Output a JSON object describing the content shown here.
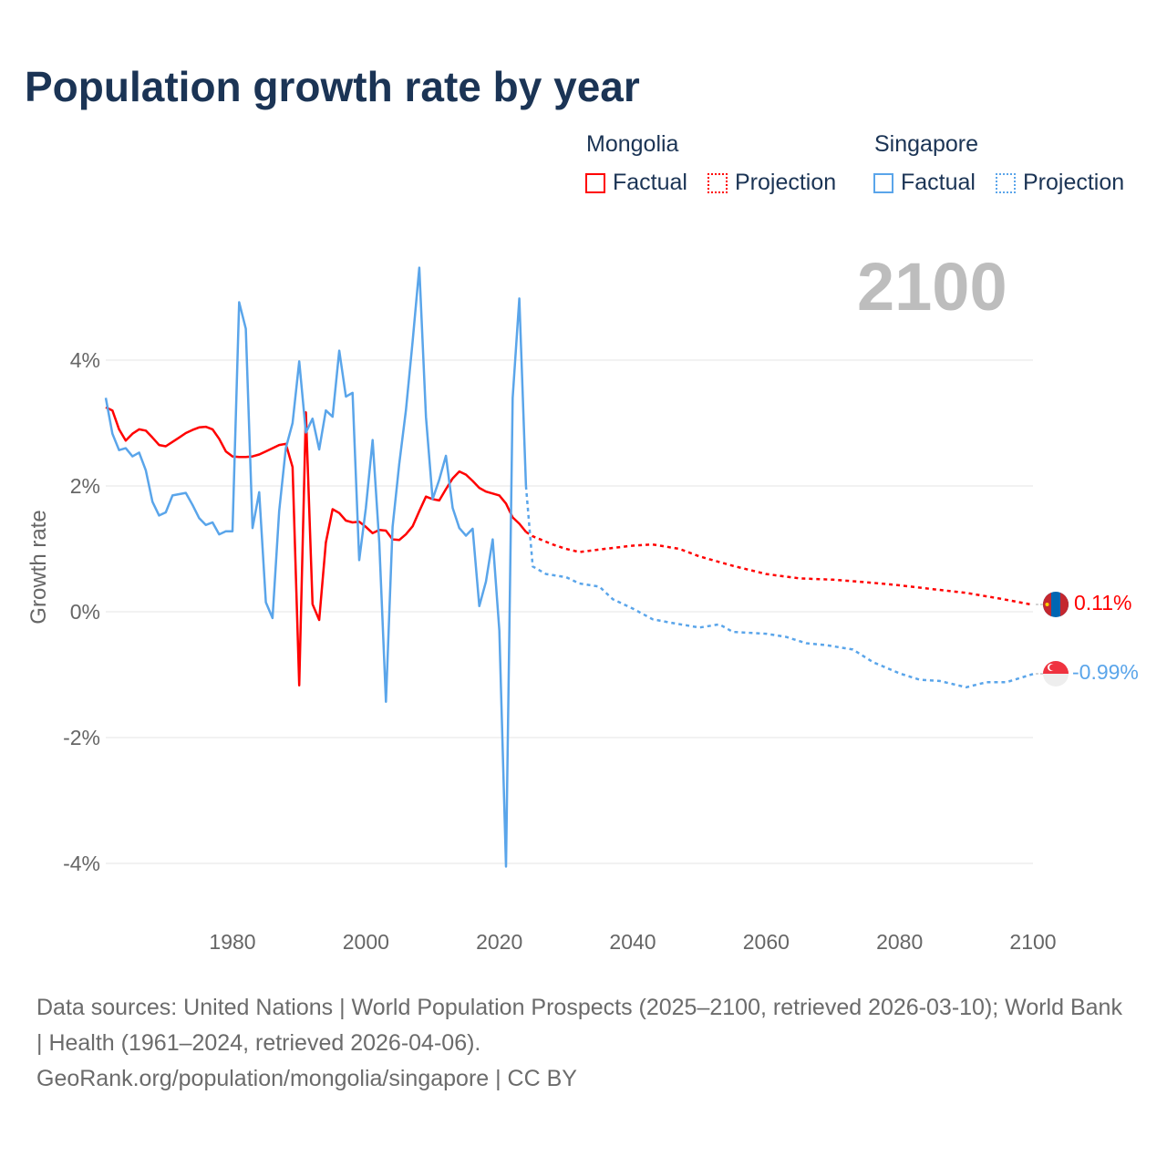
{
  "title": "Population growth rate by year",
  "legend": {
    "groups": [
      {
        "name": "Mongolia",
        "factual": "Factual",
        "projection": "Projection",
        "color": "#ff0000"
      },
      {
        "name": "Singapore",
        "factual": "Factual",
        "projection": "Projection",
        "color": "#5aa5ea"
      }
    ]
  },
  "current_year": "2100",
  "end_labels": {
    "mongolia": "0.11%",
    "singapore": "-0.99%"
  },
  "footer": {
    "sources": "Data sources: United Nations | World Population Prospects (2025–2100, retrieved 2026-03-10); World Bank | Health (1961–2024, retrieved 2026-04-06).",
    "credit": "GeoRank.org/population/mongolia/singapore | CC BY"
  },
  "chart_data": {
    "type": "line",
    "title": "Population growth rate by year",
    "xlabel": "",
    "ylabel": "Growth rate",
    "xlim": [
      1961,
      2100
    ],
    "ylim": [
      -4.5,
      5.5
    ],
    "xticks": [
      1980,
      2000,
      2020,
      2040,
      2060,
      2080,
      2100
    ],
    "yticks": [
      {
        "v": 4,
        "label": "4%"
      },
      {
        "v": 2,
        "label": "2%"
      },
      {
        "v": 0,
        "label": "0%"
      },
      {
        "v": -2,
        "label": "-2%"
      },
      {
        "v": -4,
        "label": "-4%"
      }
    ],
    "grid": true,
    "series": [
      {
        "name": "Mongolia Factual",
        "color": "#ff0000",
        "dashed": false,
        "start": 1961,
        "values": [
          3.25,
          3.2,
          2.9,
          2.72,
          2.83,
          2.9,
          2.88,
          2.77,
          2.65,
          2.63,
          2.7,
          2.77,
          2.84,
          2.89,
          2.93,
          2.94,
          2.9,
          2.75,
          2.55,
          2.47,
          2.46,
          2.46,
          2.47,
          2.5,
          2.55,
          2.6,
          2.65,
          2.67,
          2.3,
          -1.17,
          3.17,
          0.12,
          -0.13,
          1.1,
          1.63,
          1.57,
          1.45,
          1.42,
          1.43,
          1.35,
          1.25,
          1.3,
          1.29,
          1.15,
          1.14,
          1.23,
          1.36,
          1.6,
          1.83,
          1.79,
          1.77,
          1.95,
          2.12,
          2.23,
          2.18,
          2.08,
          1.97,
          1.91,
          1.88,
          1.85,
          1.72,
          1.5,
          1.4,
          1.27
        ]
      },
      {
        "name": "Singapore Factual",
        "color": "#5aa5ea",
        "dashed": false,
        "start": 1961,
        "values": [
          3.4,
          2.83,
          2.57,
          2.6,
          2.47,
          2.53,
          2.25,
          1.75,
          1.53,
          1.58,
          1.85,
          1.87,
          1.89,
          1.7,
          1.49,
          1.38,
          1.42,
          1.23,
          1.28,
          1.28,
          4.92,
          4.5,
          1.33,
          1.9,
          0.15,
          -0.1,
          1.6,
          2.6,
          3.0,
          3.98,
          2.85,
          3.07,
          2.58,
          3.2,
          3.1,
          4.15,
          3.42,
          3.48,
          0.82,
          1.65,
          2.73,
          1.1,
          -1.43,
          1.35,
          2.35,
          3.2,
          4.3,
          5.47,
          3.1,
          1.79,
          2.1,
          2.48,
          1.65,
          1.33,
          1.21,
          1.32,
          0.09,
          0.48,
          1.15,
          -0.3,
          -4.05,
          3.4,
          4.98,
          2.0
        ]
      },
      {
        "name": "Mongolia Projection",
        "color": "#ff0000",
        "dashed": true,
        "x": [
          2024,
          2025,
          2028,
          2030,
          2032,
          2035,
          2040,
          2043,
          2047,
          2050,
          2055,
          2060,
          2065,
          2070,
          2075,
          2080,
          2085,
          2090,
          2095,
          2100
        ],
        "values": [
          1.27,
          1.2,
          1.07,
          1.0,
          0.95,
          0.99,
          1.05,
          1.07,
          1.0,
          0.88,
          0.73,
          0.6,
          0.53,
          0.51,
          0.47,
          0.42,
          0.36,
          0.3,
          0.21,
          0.11
        ]
      },
      {
        "name": "Singapore Projection",
        "color": "#5aa5ea",
        "dashed": true,
        "x": [
          2024,
          2025,
          2027,
          2030,
          2032,
          2035,
          2037,
          2040,
          2043,
          2046,
          2050,
          2053,
          2055,
          2060,
          2063,
          2066,
          2069,
          2073,
          2076,
          2080,
          2083,
          2086,
          2090,
          2093,
          2096,
          2100
        ],
        "values": [
          2.0,
          0.72,
          0.6,
          0.55,
          0.45,
          0.4,
          0.2,
          0.05,
          -0.12,
          -0.18,
          -0.25,
          -0.2,
          -0.32,
          -0.35,
          -0.4,
          -0.5,
          -0.53,
          -0.6,
          -0.8,
          -0.98,
          -1.08,
          -1.1,
          -1.2,
          -1.12,
          -1.12,
          -0.99
        ]
      }
    ]
  }
}
